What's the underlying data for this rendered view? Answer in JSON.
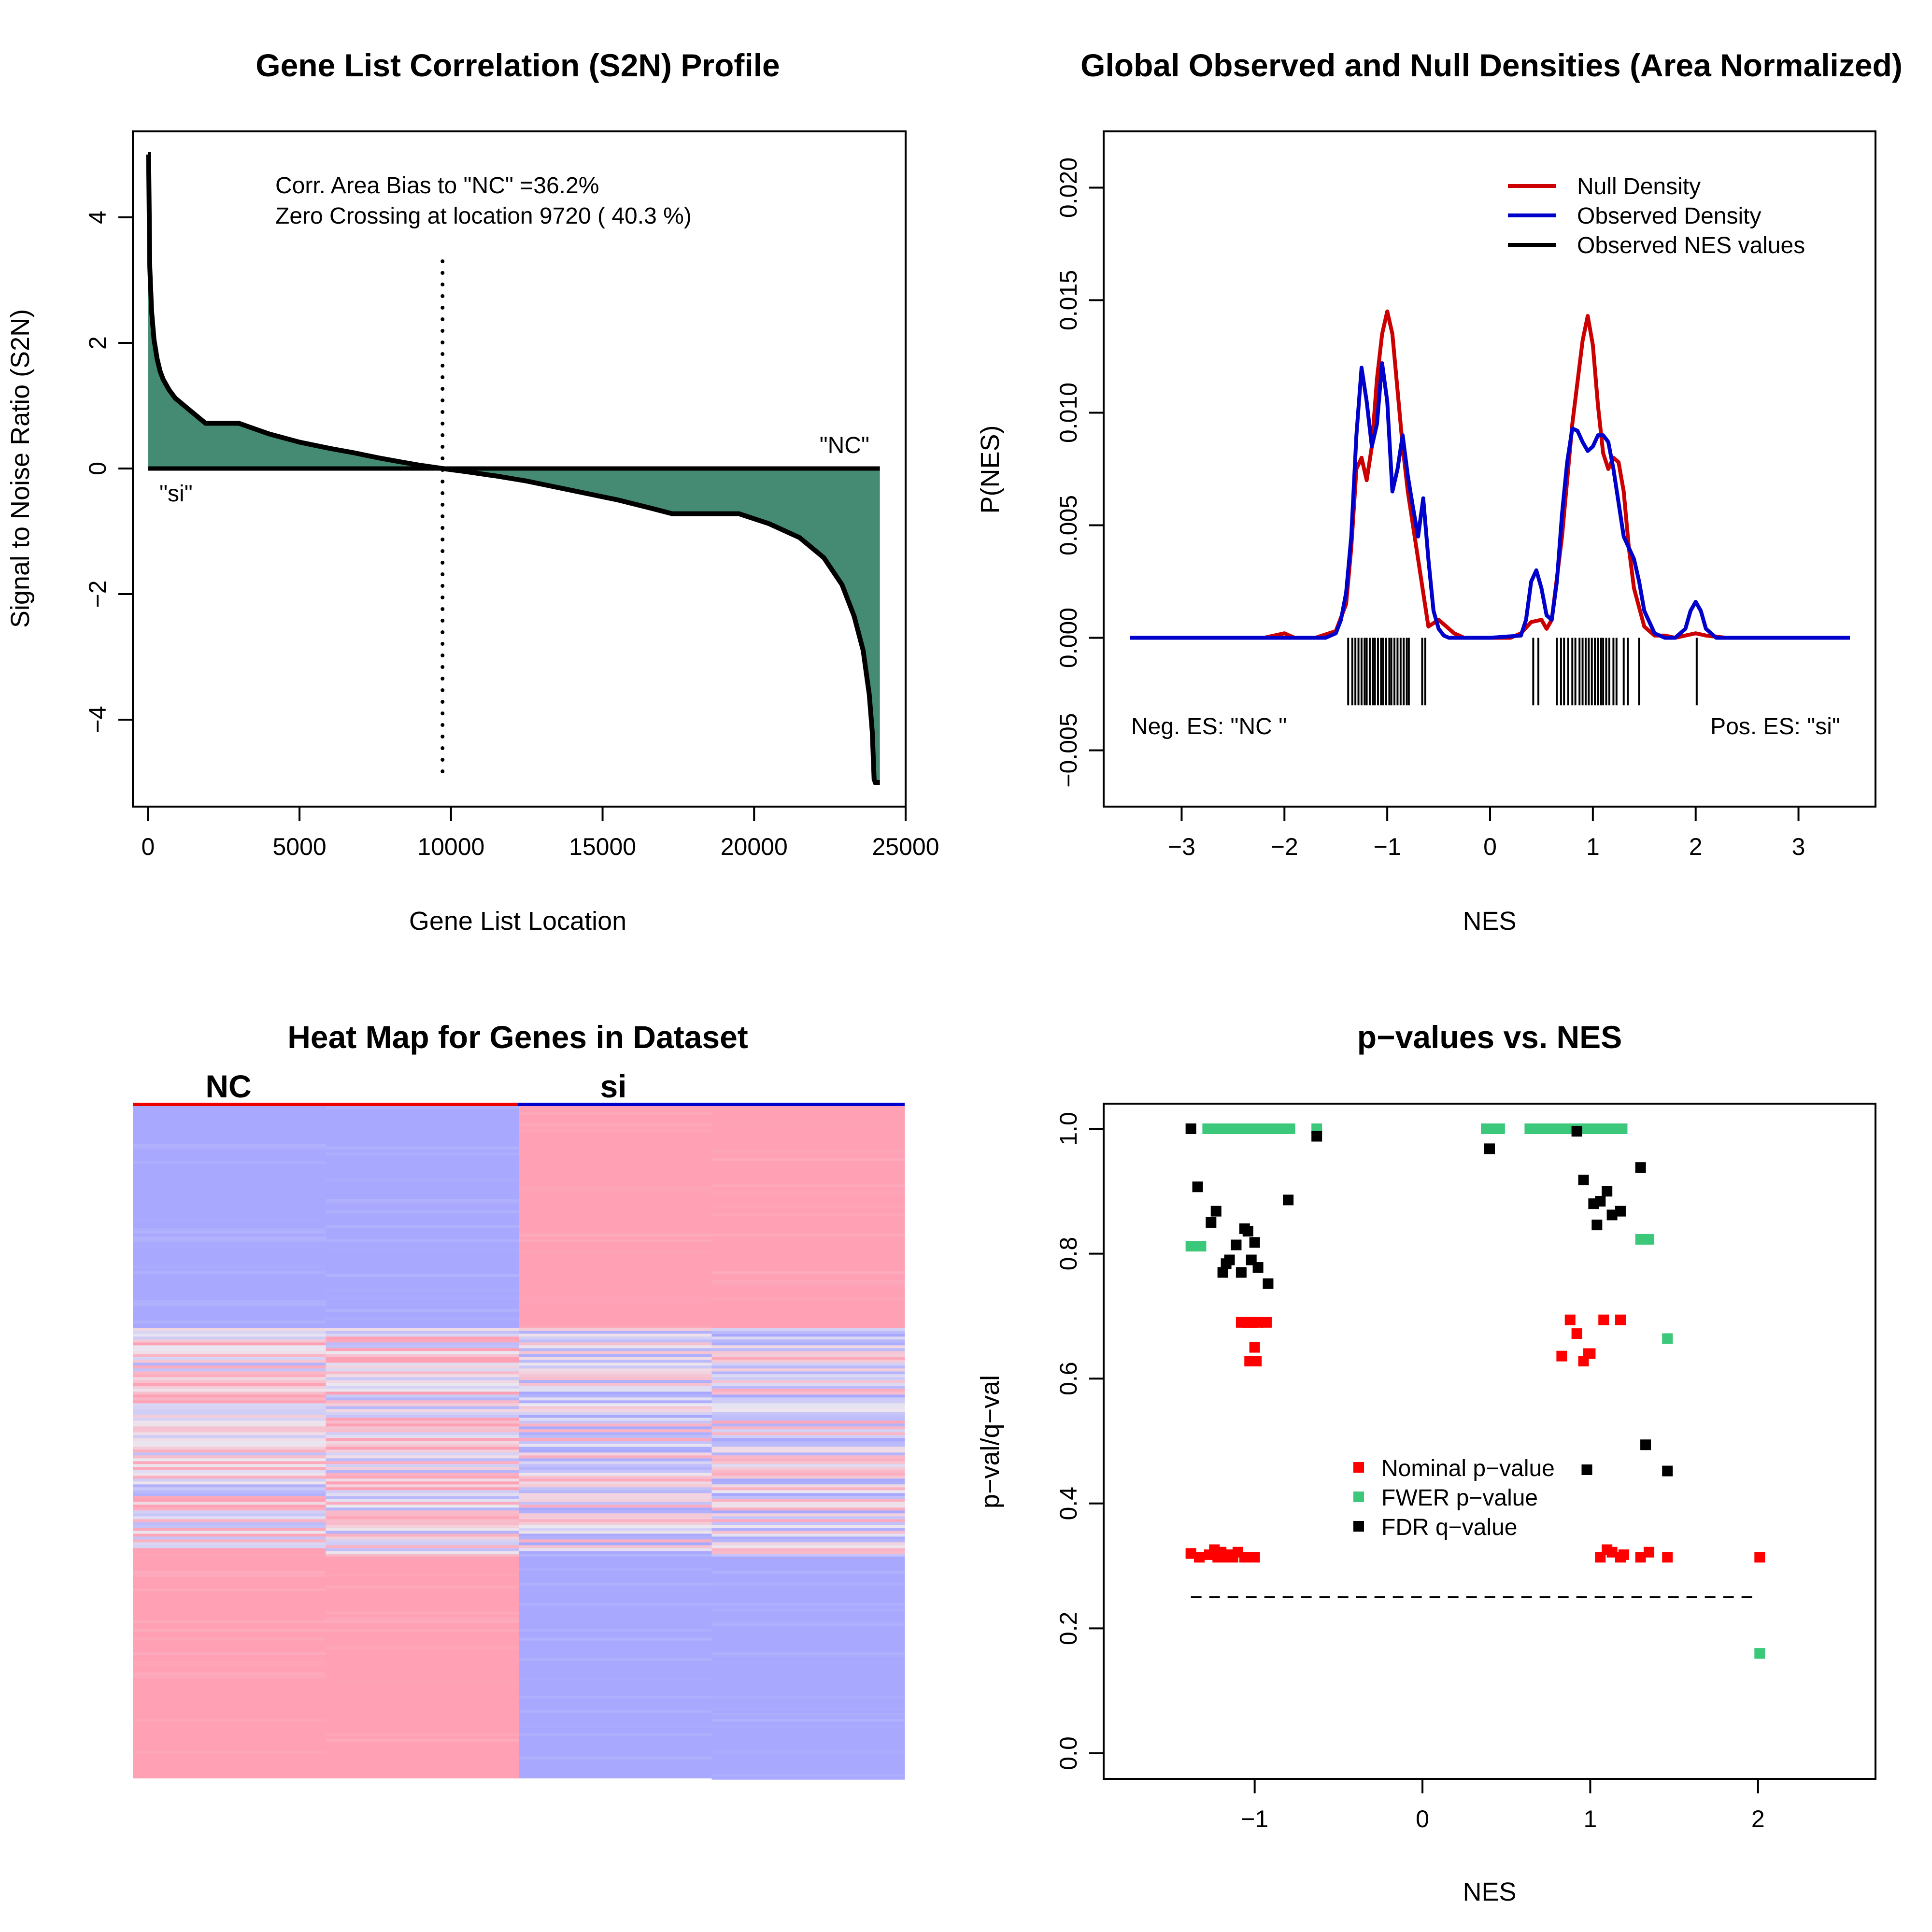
{
  "chart_data": [
    {
      "type": "area",
      "title": "Gene List Correlation (S2N) Profile",
      "xlabel": "Gene List Location",
      "ylabel": "Signal to Noise Ratio (S2N)",
      "xlim": [
        -500,
        25000
      ],
      "ylim": [
        -5,
        5
      ],
      "xticks": [
        0,
        5000,
        10000,
        15000,
        20000,
        25000
      ],
      "xtick_labels": [
        "0",
        "5000",
        "10000",
        "15000",
        "20000",
        "25000"
      ],
      "yticks": [
        -4,
        -2,
        0,
        2,
        4
      ],
      "ytick_labels": [
        "−4",
        "−2",
        "0",
        "2",
        "4"
      ],
      "zero_crossing": 9720,
      "annotations": [
        "Corr. Area Bias to \"NC\" =36.2%",
        "Zero Crossing at location  9720  ( 40.3  %)"
      ],
      "end_labels": {
        "left": "\"si\"",
        "right": "\"NC\""
      },
      "fill_color": "#458B74",
      "series": [
        {
          "x": [
            0,
            20,
            60,
            120,
            200,
            300,
            400,
            500,
            700,
            900,
            1200,
            1500,
            1900,
            2300,
            3000,
            4000,
            5000,
            6000,
            6800,
            7600,
            8400,
            9000,
            9720,
            10500,
            11500,
            12500,
            13500,
            14500,
            15500,
            16500,
            17300,
            18000,
            19500,
            20500,
            21500,
            22300,
            22900,
            23300,
            23600,
            23800,
            23900,
            23960,
            24000,
            24100,
            24150
          ],
          "y": [
            5.0,
            5.0,
            3.2,
            2.5,
            2.05,
            1.75,
            1.55,
            1.42,
            1.25,
            1.12,
            1.0,
            0.88,
            0.72,
            0.72,
            0.72,
            0.55,
            0.42,
            0.32,
            0.25,
            0.17,
            0.1,
            0.05,
            0.0,
            -0.05,
            -0.12,
            -0.2,
            -0.3,
            -0.4,
            -0.5,
            -0.62,
            -0.72,
            -0.72,
            -0.72,
            -0.88,
            -1.1,
            -1.42,
            -1.85,
            -2.35,
            -2.9,
            -3.6,
            -4.2,
            -4.95,
            -5.0,
            -5.0,
            -5.0
          ]
        }
      ]
    },
    {
      "type": "line",
      "title": "Global Observed and Null Densities (Area Normalized)",
      "xlabel": "NES",
      "ylabel": "P(NES)",
      "xlim": [
        -3.5,
        3.5
      ],
      "ylim": [
        -0.0075,
        0.0225
      ],
      "xticks": [
        -3,
        -2,
        -1,
        0,
        1,
        2,
        3
      ],
      "xtick_labels": [
        "−3",
        "−2",
        "−1",
        "0",
        "1",
        "2",
        "3"
      ],
      "yticks": [
        -0.005,
        0.0,
        0.005,
        0.01,
        0.015,
        0.02
      ],
      "ytick_labels": [
        "−0.005",
        "0.000",
        "0.005",
        "0.010",
        "0.015",
        "0.020"
      ],
      "legend_position": "top-right",
      "corner_labels": {
        "left": "Neg. ES: \"NC \"",
        "right": "Pos. ES: \"si\""
      },
      "series": [
        {
          "name": "Null Density",
          "color": "#CC0000",
          "x": [
            -3.5,
            -2.2,
            -2.0,
            -1.9,
            -1.7,
            -1.5,
            -1.4,
            -1.35,
            -1.3,
            -1.25,
            -1.2,
            -1.15,
            -1.1,
            -1.05,
            -1.0,
            -0.95,
            -0.9,
            -0.85,
            -0.8,
            -0.7,
            -0.6,
            -0.5,
            -0.45,
            -0.35,
            -0.25,
            0.0,
            0.2,
            0.3,
            0.4,
            0.5,
            0.55,
            0.6,
            0.7,
            0.8,
            0.9,
            0.95,
            1.0,
            1.05,
            1.1,
            1.15,
            1.2,
            1.25,
            1.3,
            1.35,
            1.4,
            1.5,
            1.6,
            1.7,
            1.8,
            1.9,
            2.0,
            2.1,
            2.3,
            3.5
          ],
          "y": [
            0.0,
            0.0,
            0.0002,
            0.0,
            0.0,
            0.0003,
            0.0015,
            0.004,
            0.0075,
            0.008,
            0.007,
            0.0085,
            0.0115,
            0.0135,
            0.0145,
            0.0135,
            0.011,
            0.0085,
            0.0065,
            0.0035,
            0.0005,
            0.0008,
            0.0006,
            0.0002,
            0.0,
            0.0,
            0.0,
            0.0002,
            0.0007,
            0.0008,
            0.0004,
            0.0008,
            0.0045,
            0.0095,
            0.0132,
            0.0143,
            0.013,
            0.0103,
            0.0082,
            0.0075,
            0.008,
            0.0078,
            0.0065,
            0.004,
            0.0022,
            0.0005,
            0.0001,
            0.0001,
            0.0,
            0.0001,
            0.0002,
            0.0001,
            0.0,
            0.0
          ]
        },
        {
          "name": "Observed Density",
          "color": "#0000CC",
          "x": [
            -3.5,
            -1.6,
            -1.5,
            -1.45,
            -1.4,
            -1.35,
            -1.3,
            -1.25,
            -1.2,
            -1.15,
            -1.1,
            -1.05,
            -1.0,
            -0.95,
            -0.9,
            -0.85,
            -0.8,
            -0.75,
            -0.7,
            -0.65,
            -0.6,
            -0.55,
            -0.5,
            -0.45,
            -0.4,
            -0.3,
            0.0,
            0.3,
            0.35,
            0.4,
            0.45,
            0.5,
            0.55,
            0.6,
            0.65,
            0.7,
            0.75,
            0.8,
            0.85,
            0.9,
            0.95,
            1.0,
            1.05,
            1.1,
            1.15,
            1.2,
            1.25,
            1.3,
            1.35,
            1.4,
            1.45,
            1.5,
            1.6,
            1.7,
            1.8,
            1.9,
            1.95,
            2.0,
            2.05,
            2.1,
            2.2,
            3.5
          ],
          "y": [
            0.0,
            0.0,
            0.0002,
            0.0008,
            0.002,
            0.0045,
            0.009,
            0.012,
            0.0105,
            0.0085,
            0.0095,
            0.0122,
            0.0105,
            0.0065,
            0.0075,
            0.009,
            0.0072,
            0.0058,
            0.0045,
            0.0062,
            0.0035,
            0.0012,
            0.0004,
            0.0001,
            0.0,
            0.0,
            0.0,
            0.0001,
            0.0008,
            0.0025,
            0.003,
            0.0022,
            0.001,
            0.0008,
            0.0025,
            0.0055,
            0.0078,
            0.0093,
            0.0092,
            0.0087,
            0.0083,
            0.0085,
            0.009,
            0.009,
            0.0087,
            0.0075,
            0.006,
            0.0045,
            0.004,
            0.0035,
            0.0025,
            0.0012,
            0.0002,
            0.0,
            0.0,
            0.0004,
            0.0012,
            0.0016,
            0.0012,
            0.0004,
            0.0,
            0.0
          ]
        },
        {
          "name": "Observed NES values",
          "color": "#000000",
          "type": "rug",
          "x": [
            -1.38,
            -1.34,
            -1.31,
            -1.28,
            -1.25,
            -1.22,
            -1.2,
            -1.17,
            -1.14,
            -1.12,
            -1.09,
            -1.06,
            -1.04,
            -1.01,
            -0.98,
            -0.96,
            -0.93,
            -0.9,
            -0.87,
            -0.84,
            -0.81,
            -0.79,
            -0.66,
            -0.63,
            0.42,
            0.47,
            0.65,
            0.69,
            0.72,
            0.76,
            0.8,
            0.83,
            0.87,
            0.9,
            0.93,
            0.96,
            0.99,
            1.02,
            1.05,
            1.08,
            1.1,
            1.13,
            1.16,
            1.2,
            1.23,
            1.3,
            1.34,
            1.45,
            2.01
          ]
        }
      ]
    },
    {
      "type": "heatmap",
      "title": "Heat Map for Genes in Dataset",
      "column_groups": [
        "NC",
        "si"
      ],
      "group_colors": [
        "#EE0000",
        "#0000CC"
      ],
      "columns": 4,
      "blocks": [
        {
          "rows": [
            0.0,
            0.33
          ],
          "values": [
            -1,
            -1,
            1,
            1
          ]
        },
        {
          "rows": [
            0.33,
            0.67
          ],
          "values": [
            0.4,
            0.5,
            -0.3,
            -0.2
          ]
        },
        {
          "rows": [
            0.67,
            1.0
          ],
          "values": [
            1,
            1,
            -1,
            -1
          ]
        }
      ],
      "high_color": "#FFA0B4",
      "low_color": "#A8A8FF"
    },
    {
      "type": "scatter",
      "title": "p−values vs. NES",
      "xlabel": "NES",
      "ylabel": "p−val/q−val",
      "xlim": [
        -1.9,
        2.7
      ],
      "ylim": [
        -0.05,
        1.04
      ],
      "xticks": [
        -1,
        0,
        1,
        2
      ],
      "xtick_labels": [
        "−1",
        "0",
        "1",
        "2"
      ],
      "yticks": [
        0.0,
        0.2,
        0.4,
        0.6,
        0.8,
        1.0
      ],
      "ytick_labels": [
        "0.0",
        "0.2",
        "0.4",
        "0.6",
        "0.8",
        "1.0"
      ],
      "threshold": {
        "y": 0.25,
        "x_from": -1.38,
        "x_to": 2.01
      },
      "legend_position": "center",
      "series": [
        {
          "name": "Nominal p−value",
          "color": "#FF0000",
          "x": [
            -1.38,
            -1.33,
            -1.27,
            -1.24,
            -1.22,
            -1.2,
            -1.18,
            -1.15,
            -1.13,
            -1.1,
            -1.06,
            -1.0,
            -1.08,
            -1.05,
            -1.03,
            -1.01,
            -0.98,
            -0.93,
            -1.03,
            -1.01,
            -0.99,
            -1.0,
            0.88,
            0.92,
            0.96,
            0.99,
            1.0,
            0.83,
            1.08,
            1.18,
            1.06,
            1.1,
            1.13,
            1.18,
            1.2,
            1.3,
            1.35,
            1.46,
            2.01
          ],
          "y": [
            0.32,
            0.314,
            0.318,
            0.326,
            0.314,
            0.322,
            0.314,
            0.318,
            0.314,
            0.322,
            0.314,
            0.314,
            0.69,
            0.69,
            0.69,
            0.69,
            0.69,
            0.69,
            0.628,
            0.628,
            0.628,
            0.65,
            0.694,
            0.672,
            0.628,
            0.64,
            0.64,
            0.636,
            0.694,
            0.694,
            0.314,
            0.326,
            0.322,
            0.314,
            0.318,
            0.314,
            0.322,
            0.314,
            0.314
          ]
        },
        {
          "name": "FWER p−value",
          "color": "#3CC87A",
          "x": [
            -1.38,
            -1.32,
            -1.28,
            -1.24,
            -1.2,
            -1.16,
            -1.12,
            -1.08,
            -1.04,
            -1.0,
            -0.96,
            -0.92,
            -0.88,
            -0.84,
            -0.79,
            -0.63,
            0.38,
            0.42,
            0.46,
            0.64,
            0.68,
            0.72,
            0.76,
            0.8,
            0.84,
            0.88,
            0.92,
            0.96,
            1.0,
            1.04,
            1.08,
            1.12,
            1.16,
            1.19,
            1.3,
            1.35,
            1.46,
            2.01
          ],
          "y": [
            0.812,
            0.812,
            1.0,
            1.0,
            1.0,
            1.0,
            1.0,
            1.0,
            1.0,
            1.0,
            1.0,
            1.0,
            1.0,
            1.0,
            1.0,
            1.0,
            1.0,
            1.0,
            1.0,
            1.0,
            1.0,
            1.0,
            1.0,
            1.0,
            1.0,
            1.0,
            1.0,
            1.0,
            1.0,
            1.0,
            1.0,
            1.0,
            1.0,
            1.0,
            0.823,
            0.823,
            0.664,
            0.16
          ]
        },
        {
          "name": "FDR q−value",
          "color": "#000000",
          "x": [
            -1.38,
            -1.34,
            -1.26,
            -1.23,
            -1.19,
            -1.17,
            -1.15,
            -1.11,
            -1.08,
            -1.06,
            -1.04,
            -1.02,
            -1.0,
            -0.98,
            -0.92,
            -0.8,
            -0.63,
            0.4,
            0.92,
            0.96,
            1.02,
            1.04,
            1.06,
            1.1,
            1.13,
            1.18,
            1.3,
            1.33,
            1.46,
            0.98
          ],
          "y": [
            1.0,
            0.907,
            0.85,
            0.868,
            0.77,
            0.784,
            0.79,
            0.814,
            0.77,
            0.84,
            0.836,
            0.79,
            0.818,
            0.778,
            0.752,
            0.886,
            0.988,
            0.968,
            0.996,
            0.918,
            0.88,
            0.846,
            0.884,
            0.9,
            0.862,
            0.868,
            0.938,
            0.494,
            0.452,
            0.454
          ]
        }
      ]
    }
  ]
}
